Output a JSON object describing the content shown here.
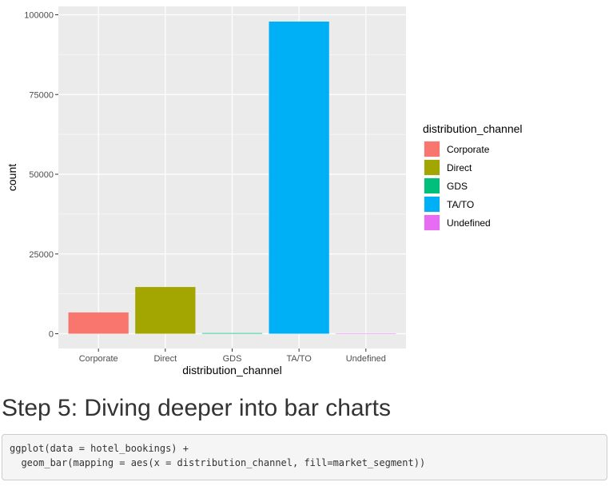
{
  "chart_data": {
    "type": "bar",
    "xlabel": "distribution_channel",
    "ylabel": "count",
    "categories": [
      "Corporate",
      "Direct",
      "GDS",
      "TA/TO",
      "Undefined"
    ],
    "values": [
      6677,
      14645,
      193,
      97870,
      5
    ],
    "colors": [
      "#F8766D",
      "#A3A500",
      "#00BF7D",
      "#00B0F6",
      "#E76BF3"
    ],
    "ylim": [
      0,
      102000
    ],
    "yticks": [
      0,
      25000,
      50000,
      75000,
      100000
    ],
    "ytick_labels": [
      "0",
      "25000",
      "50000",
      "75000",
      "100000"
    ],
    "grid": true,
    "legend": {
      "title": "distribution_channel",
      "placement": "right",
      "entries": [
        "Corporate",
        "Direct",
        "GDS",
        "TA/TO",
        "Undefined"
      ]
    }
  },
  "section": {
    "heading": "Step 5: Diving deeper into bar charts"
  },
  "code": {
    "lines": [
      "ggplot(data = hotel_bookings) +",
      "  geom_bar(mapping = aes(x = distribution_channel, fill=market_segment))"
    ]
  }
}
